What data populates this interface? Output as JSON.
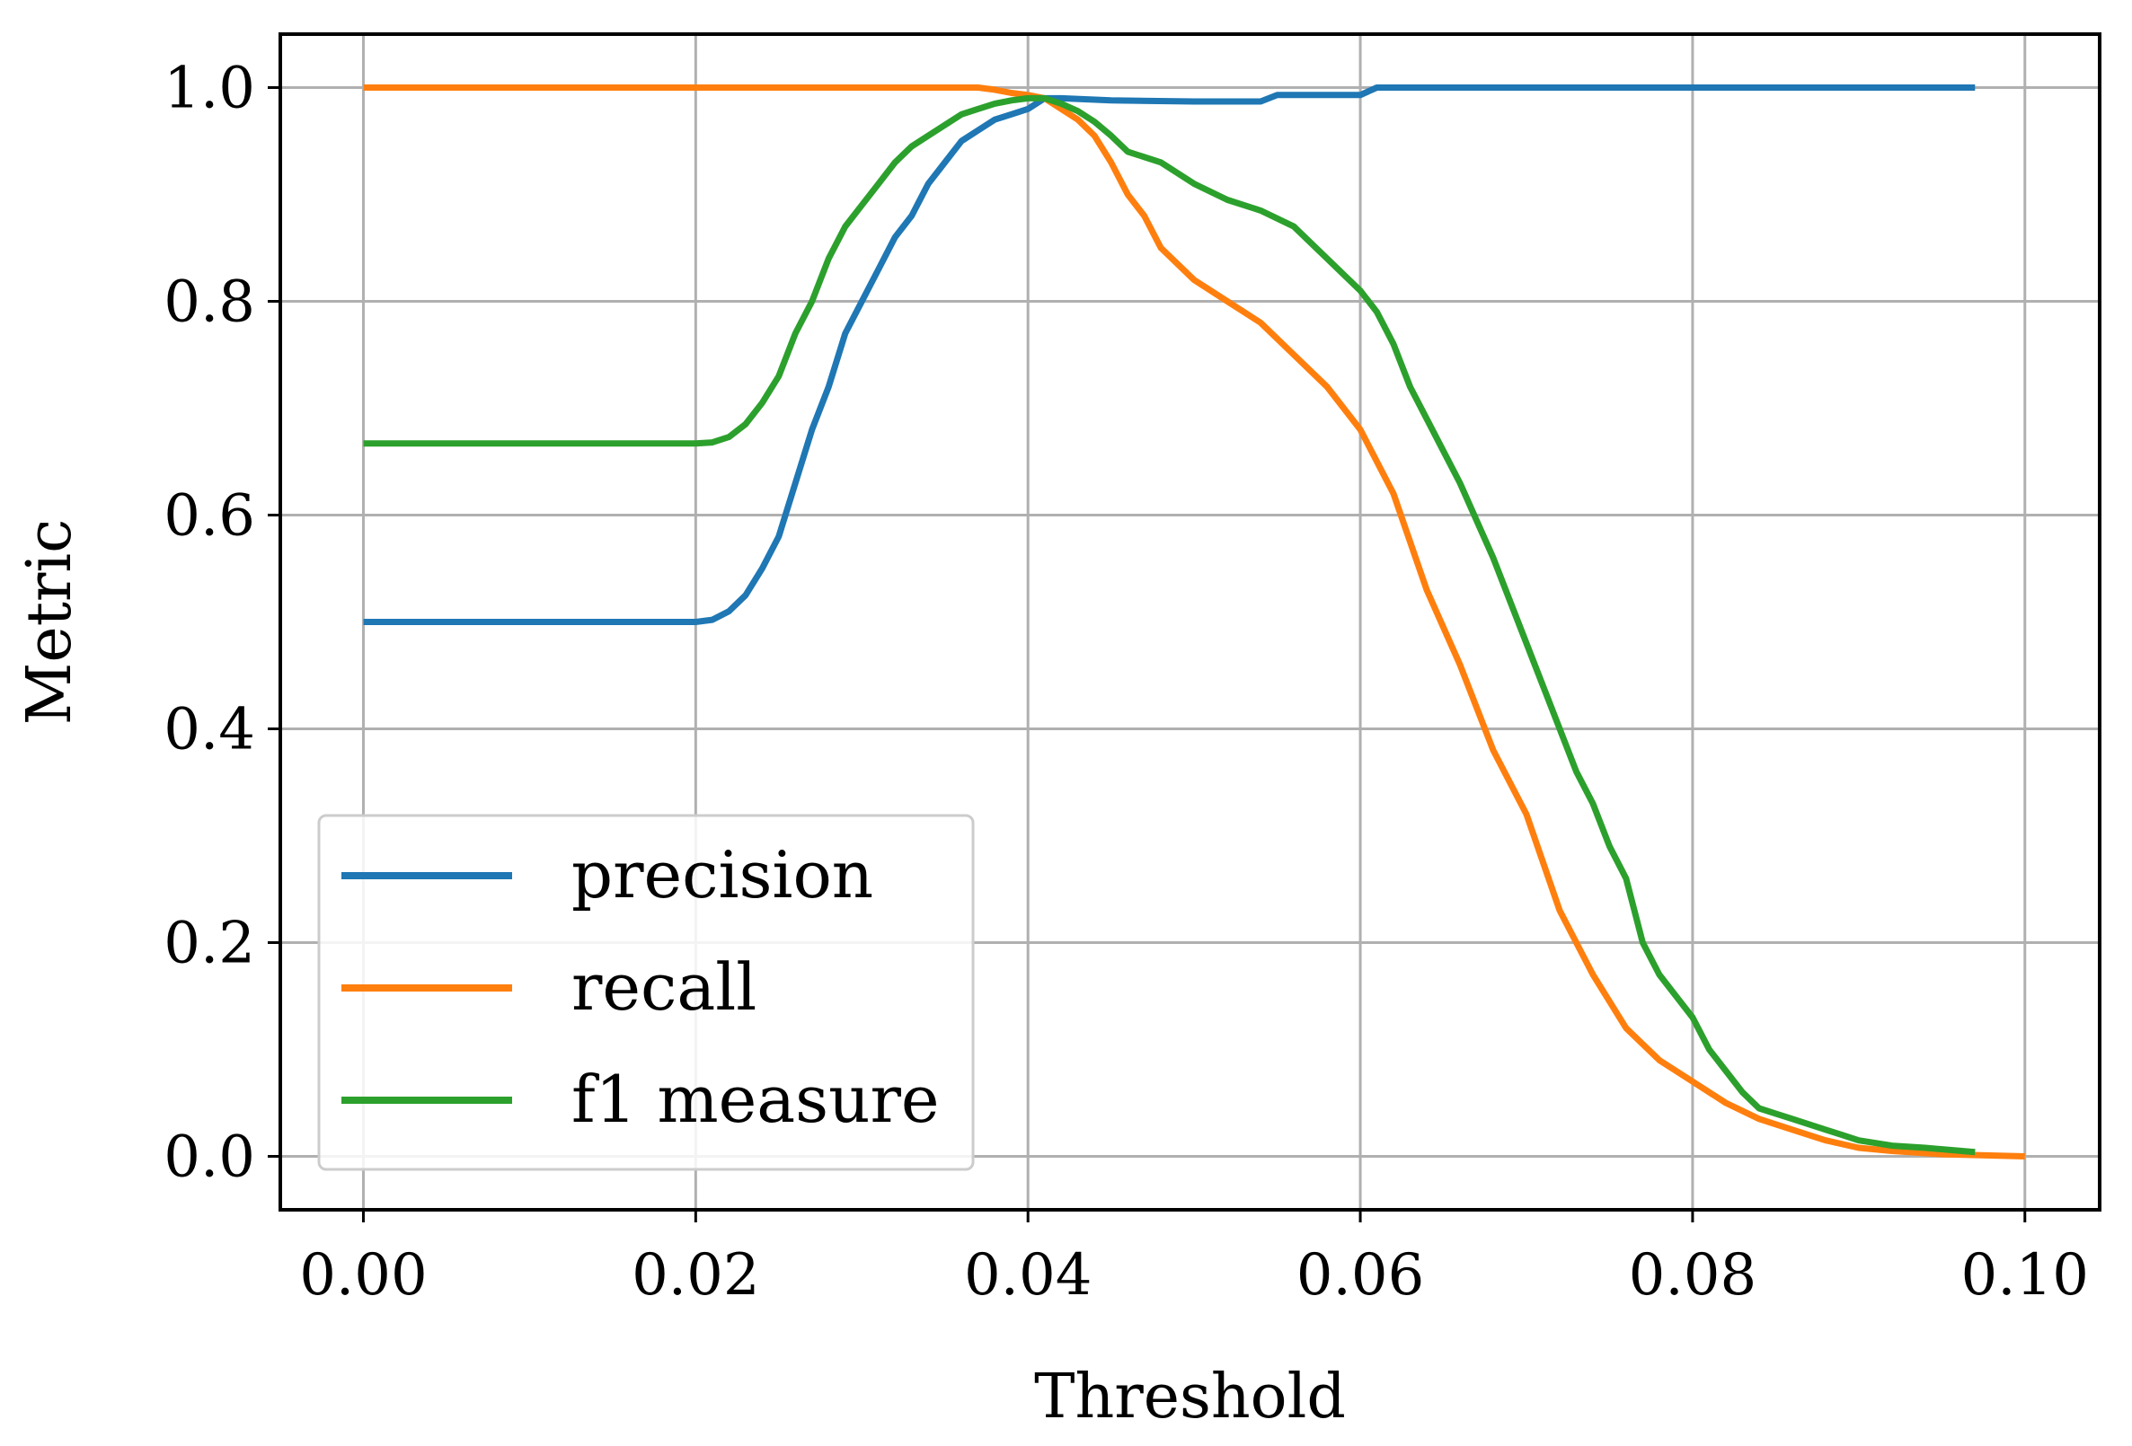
{
  "chart_data": {
    "type": "line",
    "xlabel": "Threshold",
    "ylabel": "Metric",
    "xlim": [
      -0.005,
      0.1045
    ],
    "ylim": [
      -0.05,
      1.05
    ],
    "xticks": [
      0.0,
      0.02,
      0.04,
      0.06,
      0.08,
      0.1
    ],
    "xtick_labels": [
      "0.00",
      "0.02",
      "0.04",
      "0.06",
      "0.08",
      "0.10"
    ],
    "yticks": [
      0.0,
      0.2,
      0.4,
      0.6,
      0.8,
      1.0
    ],
    "ytick_labels": [
      "0.0",
      "0.2",
      "0.4",
      "0.6",
      "0.8",
      "1.0"
    ],
    "grid": true,
    "legend_position": "lower-left",
    "series": [
      {
        "name": "precision",
        "color": "#1f77b4",
        "x": [
          0.0,
          0.01,
          0.02,
          0.021,
          0.022,
          0.023,
          0.024,
          0.025,
          0.026,
          0.027,
          0.028,
          0.029,
          0.03,
          0.031,
          0.032,
          0.033,
          0.034,
          0.035,
          0.036,
          0.037,
          0.038,
          0.039,
          0.04,
          0.041,
          0.042,
          0.045,
          0.05,
          0.054,
          0.055,
          0.058,
          0.06,
          0.061,
          0.07,
          0.08,
          0.09,
          0.097
        ],
        "y": [
          0.5,
          0.5,
          0.5,
          0.502,
          0.51,
          0.525,
          0.55,
          0.58,
          0.63,
          0.68,
          0.72,
          0.77,
          0.8,
          0.83,
          0.86,
          0.88,
          0.91,
          0.93,
          0.95,
          0.96,
          0.97,
          0.975,
          0.98,
          0.99,
          0.99,
          0.988,
          0.987,
          0.987,
          0.993,
          0.993,
          0.993,
          1.0,
          1.0,
          1.0,
          1.0,
          1.0
        ]
      },
      {
        "name": "recall",
        "color": "#ff7f0e",
        "x": [
          0.0,
          0.01,
          0.02,
          0.03,
          0.035,
          0.037,
          0.038,
          0.039,
          0.04,
          0.041,
          0.042,
          0.043,
          0.044,
          0.045,
          0.046,
          0.047,
          0.048,
          0.05,
          0.052,
          0.054,
          0.056,
          0.058,
          0.06,
          0.062,
          0.064,
          0.066,
          0.068,
          0.07,
          0.072,
          0.074,
          0.076,
          0.078,
          0.08,
          0.082,
          0.084,
          0.086,
          0.088,
          0.09,
          0.092,
          0.095,
          0.1
        ],
        "y": [
          1.0,
          1.0,
          1.0,
          1.0,
          1.0,
          1.0,
          0.998,
          0.995,
          0.993,
          0.99,
          0.98,
          0.97,
          0.955,
          0.93,
          0.9,
          0.88,
          0.85,
          0.82,
          0.8,
          0.78,
          0.75,
          0.72,
          0.68,
          0.62,
          0.53,
          0.46,
          0.38,
          0.32,
          0.23,
          0.17,
          0.12,
          0.09,
          0.07,
          0.05,
          0.035,
          0.025,
          0.015,
          0.008,
          0.005,
          0.002,
          0.0
        ]
      },
      {
        "name": "f1 measure",
        "color": "#2ca02c",
        "x": [
          0.0,
          0.01,
          0.02,
          0.021,
          0.022,
          0.023,
          0.024,
          0.025,
          0.026,
          0.027,
          0.028,
          0.029,
          0.03,
          0.031,
          0.032,
          0.033,
          0.034,
          0.035,
          0.036,
          0.037,
          0.038,
          0.039,
          0.04,
          0.041,
          0.042,
          0.043,
          0.044,
          0.045,
          0.046,
          0.048,
          0.05,
          0.052,
          0.054,
          0.056,
          0.058,
          0.06,
          0.061,
          0.062,
          0.063,
          0.064,
          0.066,
          0.068,
          0.07,
          0.071,
          0.072,
          0.073,
          0.074,
          0.075,
          0.076,
          0.077,
          0.078,
          0.079,
          0.08,
          0.081,
          0.082,
          0.083,
          0.084,
          0.085,
          0.086,
          0.087,
          0.088,
          0.089,
          0.09,
          0.092,
          0.094,
          0.097
        ],
        "y": [
          0.667,
          0.667,
          0.667,
          0.668,
          0.673,
          0.685,
          0.705,
          0.73,
          0.77,
          0.8,
          0.84,
          0.87,
          0.89,
          0.91,
          0.93,
          0.945,
          0.955,
          0.965,
          0.975,
          0.98,
          0.985,
          0.988,
          0.99,
          0.99,
          0.985,
          0.978,
          0.968,
          0.955,
          0.94,
          0.93,
          0.91,
          0.895,
          0.885,
          0.87,
          0.84,
          0.81,
          0.79,
          0.76,
          0.72,
          0.69,
          0.63,
          0.56,
          0.48,
          0.44,
          0.4,
          0.36,
          0.33,
          0.29,
          0.26,
          0.2,
          0.17,
          0.15,
          0.13,
          0.1,
          0.08,
          0.06,
          0.045,
          0.04,
          0.035,
          0.03,
          0.025,
          0.02,
          0.015,
          0.01,
          0.008,
          0.004
        ]
      }
    ]
  }
}
